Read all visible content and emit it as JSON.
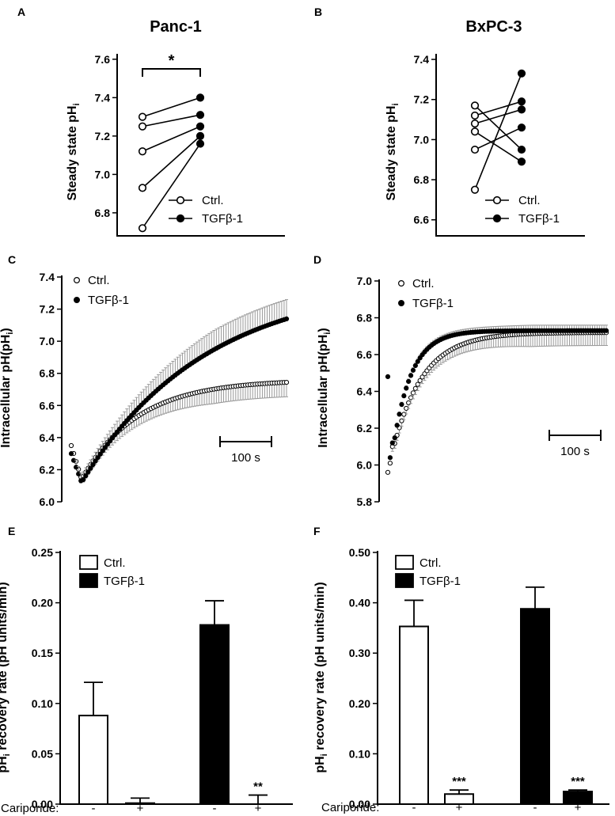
{
  "chart_data": [
    {
      "panel": "A",
      "type": "scatter",
      "title": "Panc-1",
      "ylabel": "Steady state pHi",
      "ylim": [
        6.68,
        7.62
      ],
      "yticks": [
        "6.8",
        "7.0",
        "7.2",
        "7.4",
        "7.6"
      ],
      "legend": [
        "Ctrl.",
        "TGFβ-1"
      ],
      "pairs": [
        [
          7.3,
          7.4
        ],
        [
          7.25,
          7.31
        ],
        [
          7.12,
          7.25
        ],
        [
          6.93,
          7.2
        ],
        [
          6.72,
          7.16
        ]
      ],
      "significance": "*"
    },
    {
      "panel": "B",
      "type": "scatter",
      "title": "BxPC-3",
      "ylabel": "Steady state pHi",
      "ylim": [
        6.52,
        7.42
      ],
      "yticks": [
        "6.6",
        "6.8",
        "7.0",
        "7.2",
        "7.4"
      ],
      "legend": [
        "Ctrl.",
        "TGFβ-1"
      ],
      "pairs": [
        [
          7.17,
          6.95
        ],
        [
          7.12,
          7.19
        ],
        [
          7.08,
          7.15
        ],
        [
          7.04,
          6.89
        ],
        [
          6.95,
          7.06
        ],
        [
          6.75,
          7.33
        ]
      ]
    },
    {
      "panel": "C",
      "type": "line",
      "ylabel": "Intracellular pH(pHi)",
      "ylim": [
        6.0,
        7.4
      ],
      "yticks": [
        "6.0",
        "6.2",
        "6.4",
        "6.6",
        "6.8",
        "7.0",
        "7.2",
        "7.4"
      ],
      "legend": [
        "Ctrl.",
        "TGFβ-1"
      ],
      "scalebar": "100 s",
      "t_max": 730,
      "series": [
        {
          "name": "Ctrl.",
          "start": 6.35,
          "min": 6.14,
          "t_min": 35,
          "plateau": 6.76,
          "tau": 190,
          "err": 0.09
        },
        {
          "name": "TGFβ-1",
          "start": 6.3,
          "min": 6.12,
          "t_min": 35,
          "plateau": 7.38,
          "tau": 420,
          "err": 0.12
        }
      ]
    },
    {
      "panel": "D",
      "type": "line",
      "ylabel": "Intracellular pH(pHi)",
      "ylim": [
        5.8,
        7.0
      ],
      "yticks": [
        "5.8",
        "6.0",
        "6.2",
        "6.4",
        "6.6",
        "6.8",
        "7.0"
      ],
      "legend": [
        "Ctrl.",
        "TGFβ-1"
      ],
      "scalebar": "100 s",
      "t_max": 650,
      "series": [
        {
          "name": "Ctrl.",
          "first": [
            5.96,
            6.01
          ],
          "min": 6.1,
          "t_min": 18,
          "plateau": 6.72,
          "tau": 90,
          "err": 0.07
        },
        {
          "name": "TGFβ-1",
          "first": [
            6.48,
            6.04
          ],
          "min": 6.12,
          "t_min": 18,
          "plateau": 6.73,
          "tau": 55,
          "err": 0.03
        }
      ]
    },
    {
      "panel": "E",
      "type": "bar",
      "ylabel": "pHi recovery rate (pH units/min)",
      "ylim": [
        0,
        0.25
      ],
      "yticks": [
        "0.00",
        "0.05",
        "0.10",
        "0.15",
        "0.20",
        "0.25"
      ],
      "legend": [
        "Ctrl.",
        "TGFβ-1"
      ],
      "xlabel_row": "Cariporide:",
      "categories": [
        "-",
        "+",
        "-",
        "+"
      ],
      "groups": [
        "Ctrl.",
        "Ctrl.",
        "TGFβ-1",
        "TGFβ-1"
      ],
      "values": [
        0.088,
        0.001,
        0.178,
        0.0
      ],
      "errors": [
        0.033,
        0.005,
        0.024,
        0.009
      ],
      "annotations": [
        "",
        "",
        "",
        "**"
      ]
    },
    {
      "panel": "F",
      "type": "bar",
      "ylabel": "pHi recovery rate (pH units/min)",
      "ylim": [
        0,
        0.5
      ],
      "yticks": [
        "0.00",
        "0.10",
        "0.20",
        "0.30",
        "0.40",
        "0.50"
      ],
      "legend": [
        "Ctrl.",
        "TGFβ-1"
      ],
      "xlabel_row": "Cariporide:",
      "categories": [
        "-",
        "+",
        "-",
        "+"
      ],
      "groups": [
        "Ctrl.",
        "Ctrl.",
        "TGFβ-1",
        "TGFβ-1"
      ],
      "values": [
        0.353,
        0.02,
        0.388,
        0.025
      ],
      "errors": [
        0.052,
        0.008,
        0.043,
        0.003
      ],
      "annotations": [
        "",
        "***",
        "",
        "***"
      ]
    }
  ]
}
